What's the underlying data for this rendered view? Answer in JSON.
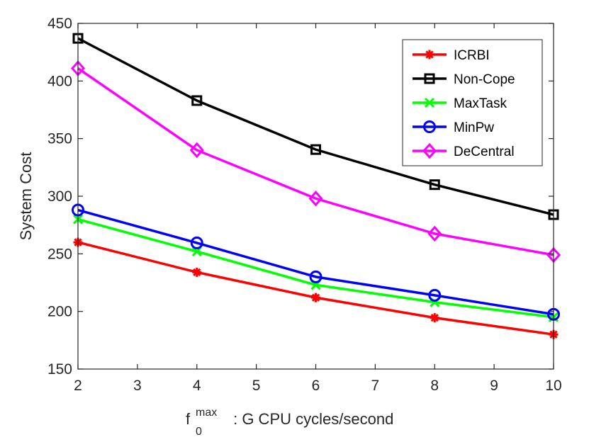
{
  "chart_data": {
    "type": "line",
    "title": "",
    "xlabel": {
      "base": "f",
      "superscript": "max",
      "subscript": "0",
      "rest": " : G CPU cycles/second"
    },
    "ylabel": "System Cost",
    "x": [
      2,
      4,
      6,
      8,
      10
    ],
    "xlim": [
      2,
      10
    ],
    "ylim": [
      150,
      450
    ],
    "xticks": [
      2,
      3,
      4,
      5,
      6,
      7,
      8,
      9,
      10
    ],
    "yticks": [
      150,
      200,
      250,
      300,
      350,
      400,
      450
    ],
    "grid": false,
    "legend_position": "top-right",
    "series": [
      {
        "name": "ICRBI",
        "color": "#ff0000",
        "marker": "asterisk",
        "values": [
          260,
          234,
          212,
          194.5,
          180
        ]
      },
      {
        "name": "Non-Cope",
        "color": "#000000",
        "marker": "square",
        "values": [
          437,
          383,
          340.5,
          310,
          284
        ]
      },
      {
        "name": "MaxTask",
        "color": "#00ff00",
        "marker": "cross",
        "values": [
          280,
          252,
          223,
          208,
          195
        ]
      },
      {
        "name": "MinPw",
        "color": "#0000ff",
        "marker": "circle",
        "values": [
          288,
          259.5,
          230,
          214,
          197.5
        ]
      },
      {
        "name": "DeCentral",
        "color": "#ff00ff",
        "marker": "diamond",
        "values": [
          411,
          340,
          298,
          267.5,
          249
        ]
      }
    ]
  }
}
